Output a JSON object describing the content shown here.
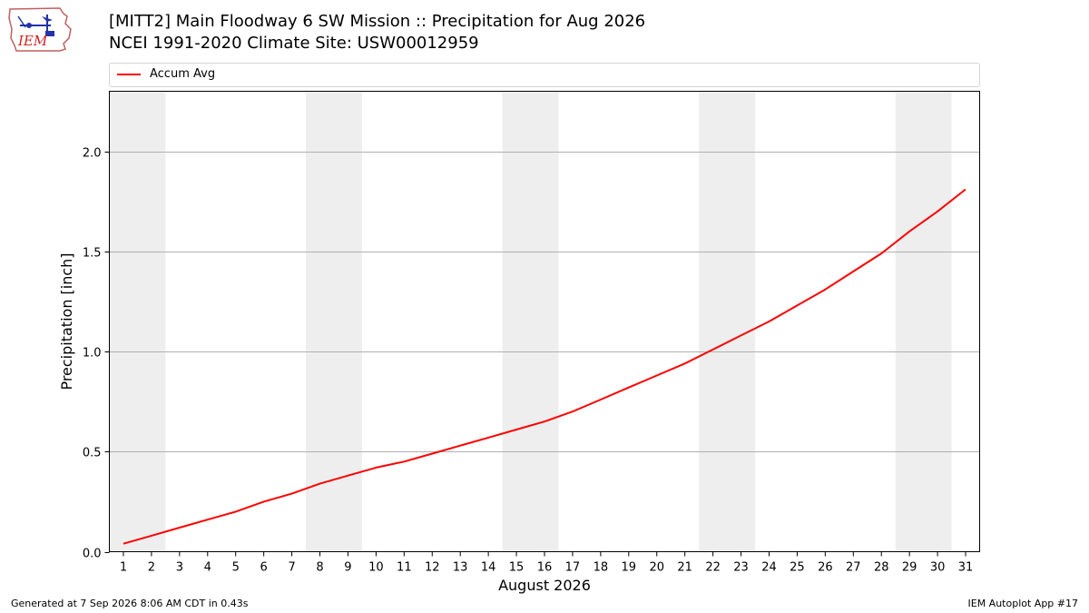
{
  "header": {
    "title_line1": "[MITT2] Main Floodway 6 SW Mission :: Precipitation for Aug 2026",
    "title_line2": "NCEI 1991-2020 Climate Site: USW00012959"
  },
  "logo": {
    "text": "IEM",
    "icon": "iem-iowa-logo"
  },
  "footer": {
    "generated": "Generated at 7 Sep 2026 8:06 AM CDT in 0.43s",
    "app": "IEM Autoplot App #17"
  },
  "colors": {
    "series": "#ff0000",
    "weekend_band": "#eeeeee",
    "grid": "#b0b0b0"
  },
  "chart_data": {
    "type": "line",
    "title": "[MITT2] Main Floodway 6 SW Mission :: Precipitation for Aug 2026",
    "subtitle": "NCEI 1991-2020 Climate Site: USW00012959",
    "xlabel": "August 2026",
    "ylabel": "Precipitation [inch]",
    "xlim": [
      0.5,
      31.5
    ],
    "ylim": [
      0,
      2.3
    ],
    "x_ticks": [
      1,
      2,
      3,
      4,
      5,
      6,
      7,
      8,
      9,
      10,
      11,
      12,
      13,
      14,
      15,
      16,
      17,
      18,
      19,
      20,
      21,
      22,
      23,
      24,
      25,
      26,
      27,
      28,
      29,
      30,
      31
    ],
    "y_ticks": [
      "0.0",
      "0.5",
      "1.0",
      "1.5",
      "2.0"
    ],
    "grid": "horizontal",
    "legend_position": "top",
    "weekend_days": [
      1,
      2,
      8,
      9,
      15,
      16,
      22,
      23,
      29,
      30
    ],
    "series": [
      {
        "name": "Accum Avg",
        "color": "#ff0000",
        "x": [
          1,
          2,
          3,
          4,
          5,
          6,
          7,
          8,
          9,
          10,
          11,
          12,
          13,
          14,
          15,
          16,
          17,
          18,
          19,
          20,
          21,
          22,
          23,
          24,
          25,
          26,
          27,
          28,
          29,
          30,
          31
        ],
        "values": [
          0.04,
          0.08,
          0.12,
          0.16,
          0.2,
          0.25,
          0.29,
          0.34,
          0.38,
          0.42,
          0.45,
          0.49,
          0.53,
          0.57,
          0.61,
          0.65,
          0.7,
          0.76,
          0.82,
          0.88,
          0.94,
          1.01,
          1.08,
          1.15,
          1.23,
          1.31,
          1.4,
          1.49,
          1.6,
          1.7,
          1.81
        ]
      }
    ]
  }
}
